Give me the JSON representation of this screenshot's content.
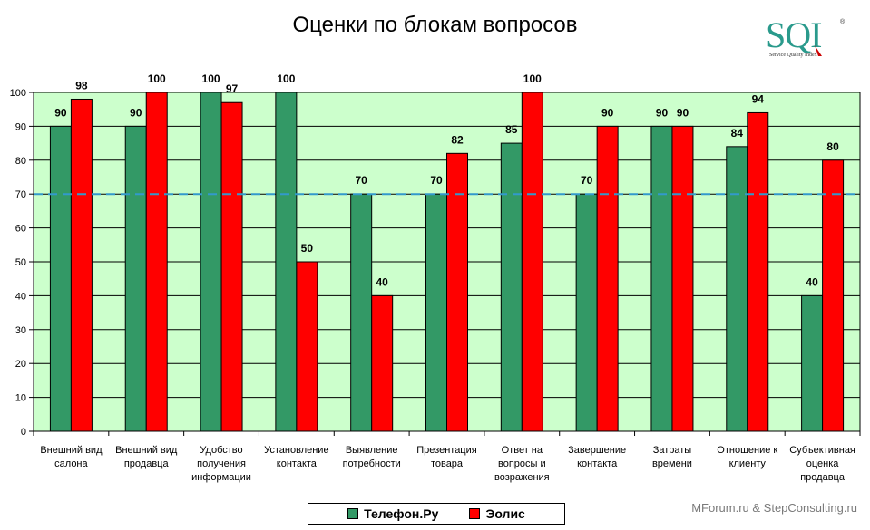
{
  "title": "Оценки по блокам вопросов",
  "logo": {
    "text": "SQI",
    "subtitle": "Service Quality Index",
    "registered": "®"
  },
  "source_note": "MForum.ru & StepConsulting.ru",
  "colors": {
    "plot_bg": "#ccffcc",
    "series1": "#339966",
    "series2": "#ff0000",
    "threshold_line": "#3399cc",
    "grid": "#000000"
  },
  "chart_data": {
    "type": "bar",
    "categories": [
      [
        "Внешний вид",
        "салона"
      ],
      [
        "Внешний вид",
        "продавца"
      ],
      [
        "Удобство",
        "получения",
        "информации"
      ],
      [
        "Установление",
        "контакта"
      ],
      [
        "Выявление",
        "потребности"
      ],
      [
        "Презентация",
        "товара"
      ],
      [
        "Ответ на",
        "вопросы и",
        "возражения"
      ],
      [
        "Завершение",
        "контакта"
      ],
      [
        "Затраты",
        "времени"
      ],
      [
        "Отношение к",
        "клиенту"
      ],
      [
        "Субъективная",
        "оценка",
        "продавца"
      ]
    ],
    "series": [
      {
        "name": "Телефон.Ру",
        "values": [
          90,
          90,
          100,
          100,
          70,
          70,
          85,
          70,
          90,
          84,
          40
        ]
      },
      {
        "name": "Эолис",
        "values": [
          98,
          100,
          97,
          50,
          40,
          82,
          100,
          90,
          90,
          94,
          80
        ]
      }
    ],
    "ylim": [
      0,
      100
    ],
    "yticks": [
      0,
      10,
      20,
      30,
      40,
      50,
      60,
      70,
      80,
      90,
      100
    ],
    "threshold": 70,
    "grid": true,
    "legend_position": "bottom-center"
  }
}
